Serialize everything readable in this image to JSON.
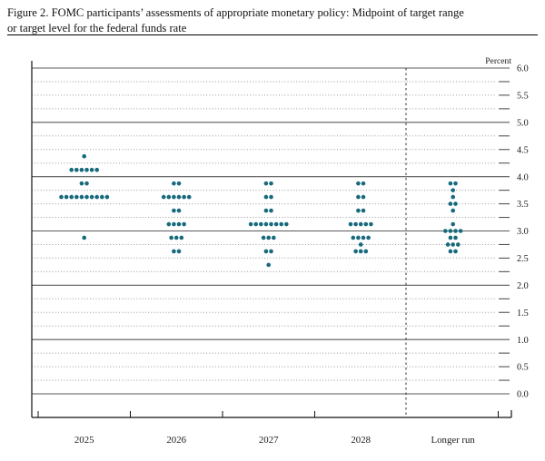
{
  "figure": {
    "title_line1": "Figure 2. FOMC participants’ assessments of appropriate monetary policy: Midpoint of target range",
    "title_line2": "or target level for the federal funds rate"
  },
  "chart_data": {
    "type": "scatter",
    "title": "FOMC participants’ assessments of appropriate monetary policy: Midpoint of target range or target level for the federal funds rate",
    "ylabel": "Percent",
    "xlabel": "",
    "ylim": [
      0.0,
      6.0
    ],
    "y_label_step": 0.5,
    "y_minor_step": 0.25,
    "grid": true,
    "legend": "none",
    "dot_color": "#176a7d",
    "axis_color": "#111111",
    "major_grid_color": "#5a5a5a",
    "minor_grid_color": "#999999",
    "categories": [
      "2025",
      "2026",
      "2027",
      "2028",
      "Longer run"
    ],
    "divider_before_category": "Longer run",
    "y_tick_labels": [
      "6.0",
      "5.5",
      "5.0",
      "4.5",
      "4.0",
      "3.5",
      "3.0",
      "2.5",
      "2.0",
      "1.5",
      "1.0",
      "0.5",
      "0.0"
    ],
    "series": [
      {
        "name": "2025",
        "dots": [
          [
            4.375,
            1
          ],
          [
            4.125,
            6
          ],
          [
            3.875,
            2
          ],
          [
            3.625,
            10
          ],
          [
            2.875,
            1
          ]
        ]
      },
      {
        "name": "2026",
        "dots": [
          [
            3.875,
            2
          ],
          [
            3.625,
            6
          ],
          [
            3.375,
            2
          ],
          [
            3.125,
            4
          ],
          [
            2.875,
            3
          ],
          [
            2.625,
            2
          ]
        ]
      },
      {
        "name": "2027",
        "dots": [
          [
            3.875,
            2
          ],
          [
            3.625,
            2
          ],
          [
            3.375,
            2
          ],
          [
            3.125,
            8
          ],
          [
            2.875,
            3
          ],
          [
            2.625,
            2
          ],
          [
            2.375,
            1
          ]
        ]
      },
      {
        "name": "2028",
        "dots": [
          [
            3.875,
            2
          ],
          [
            3.625,
            2
          ],
          [
            3.375,
            2
          ],
          [
            3.125,
            5
          ],
          [
            2.875,
            4
          ],
          [
            2.75,
            1
          ],
          [
            2.625,
            3
          ]
        ]
      },
      {
        "name": "Longer run",
        "dots": [
          [
            3.875,
            2
          ],
          [
            3.75,
            1
          ],
          [
            3.625,
            1
          ],
          [
            3.5,
            2
          ],
          [
            3.375,
            1
          ],
          [
            3.125,
            1
          ],
          [
            3.0,
            4
          ],
          [
            2.875,
            2
          ],
          [
            2.75,
            3
          ],
          [
            2.625,
            2
          ]
        ]
      }
    ]
  }
}
